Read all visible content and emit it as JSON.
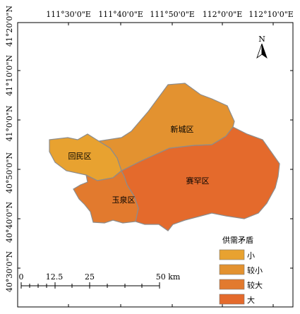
{
  "map": {
    "top_ticks": [
      "111°30'0\"E",
      "111°40'0\"E",
      "111°50'0\"E",
      "112°0'0\"E",
      "112°10'0\"E"
    ],
    "left_ticks": [
      "41°20'0\"N",
      "41°10'0\"N",
      "41°0'0\"N",
      "40°50'0\"N",
      "40°40'0\"N",
      "40°30'0\"N"
    ],
    "north_arrow": {
      "label": "N",
      "icon": "north-arrow-icon"
    },
    "districts": [
      {
        "name": "回民区",
        "category": "小",
        "color": "#e8a230"
      },
      {
        "name": "新城区",
        "category": "较小",
        "color": "#e39230"
      },
      {
        "name": "玉泉区",
        "category": "较大",
        "color": "#e27a2e"
      },
      {
        "name": "赛罕区",
        "category": "大",
        "color": "#e46a2c"
      }
    ],
    "legend": {
      "title": "供需矛盾",
      "items": [
        {
          "label": "小",
          "color": "#e8a230"
        },
        {
          "label": "较小",
          "color": "#e39230"
        },
        {
          "label": "较大",
          "color": "#e27a2e"
        },
        {
          "label": "大",
          "color": "#e46a2c"
        }
      ]
    },
    "scale_bar": {
      "labels": [
        "0",
        "12.5",
        "25",
        "50 km"
      ]
    },
    "colors": {
      "boundary": "#8c8c8c"
    }
  }
}
